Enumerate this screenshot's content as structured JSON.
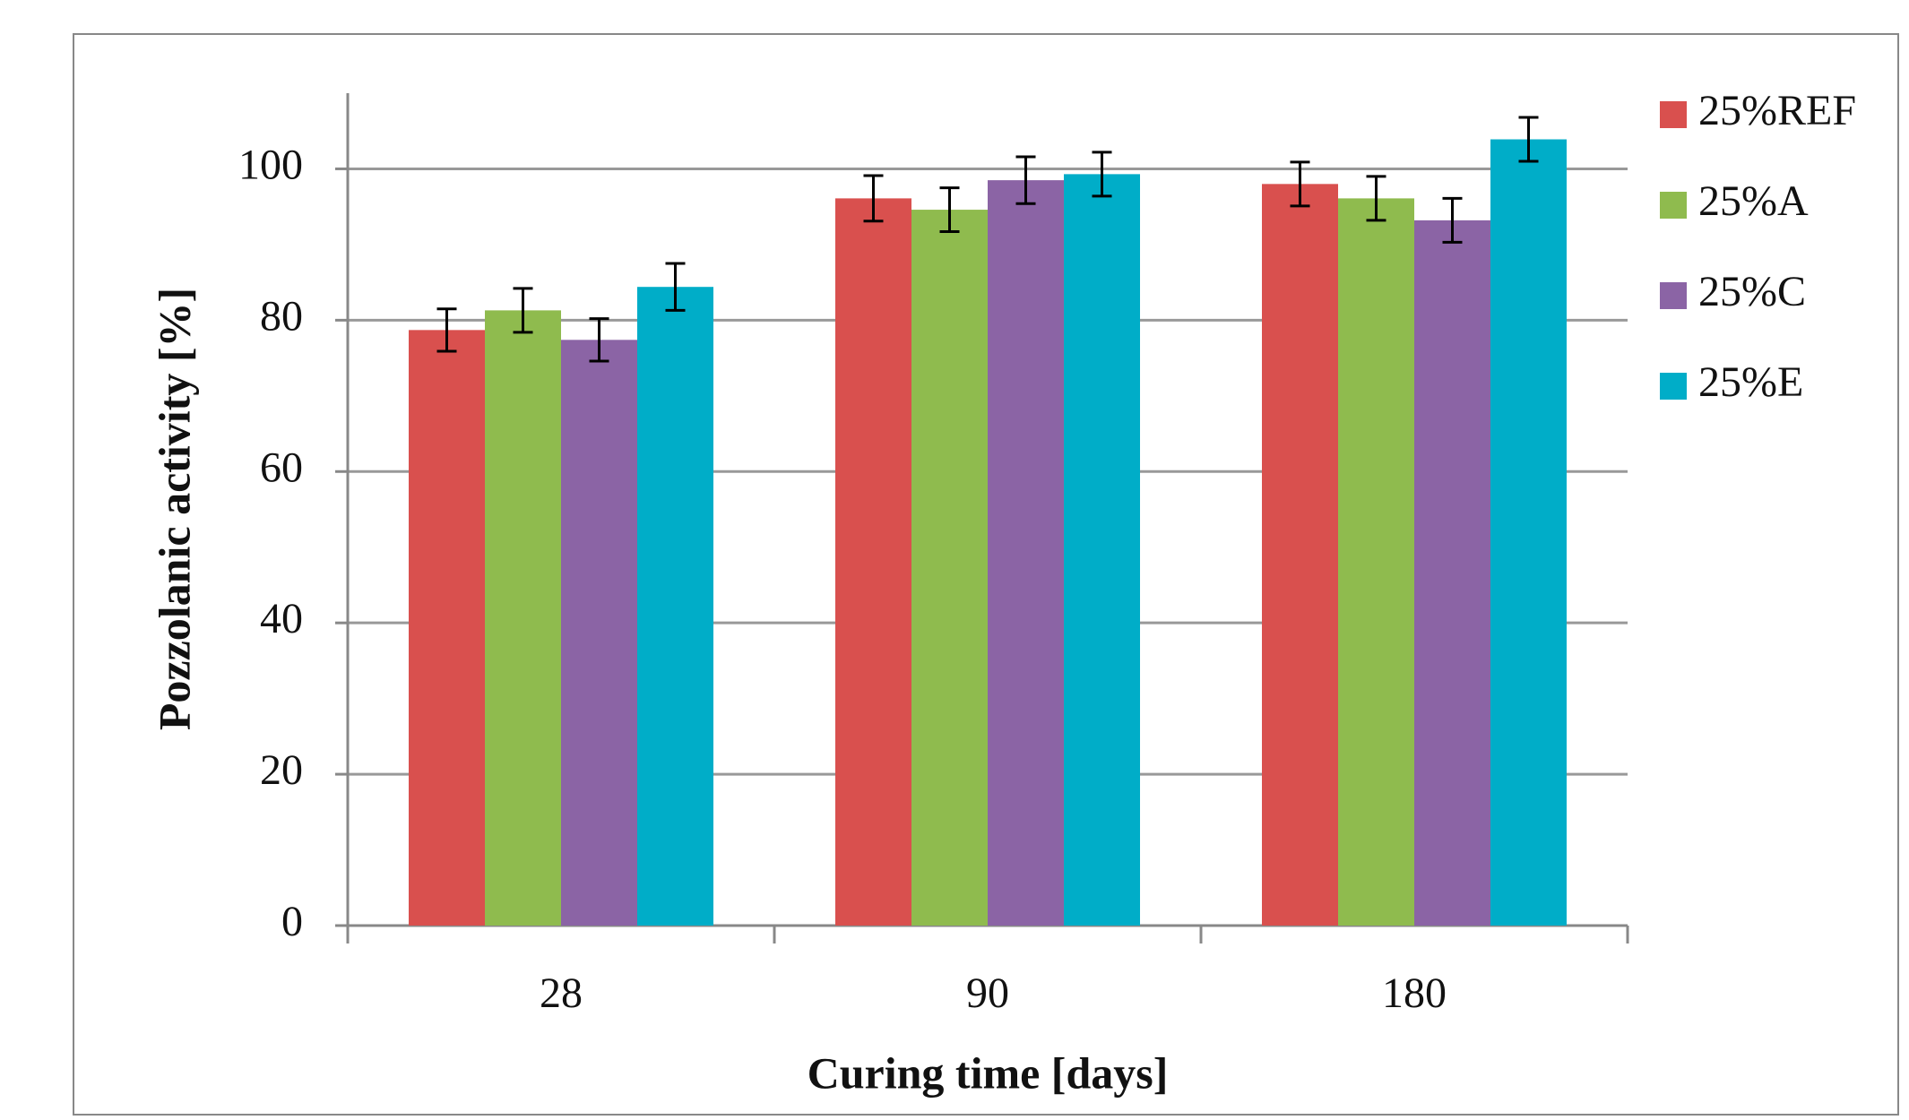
{
  "chart_data": {
    "type": "bar",
    "x_label": "Curing time [days]",
    "y_label": "Pozzolanic activity [%]",
    "categories": [
      "28",
      "90",
      "180"
    ],
    "series": [
      {
        "name": "25%REF",
        "color": "#d9504e",
        "values": [
          78.7,
          96.1,
          98.0
        ],
        "errors": [
          2.8,
          3.0,
          2.9
        ]
      },
      {
        "name": "25%A",
        "color": "#8fbb4e",
        "values": [
          81.3,
          94.6,
          96.1
        ],
        "errors": [
          2.9,
          2.9,
          2.9
        ]
      },
      {
        "name": "25%C",
        "color": "#8b64a5",
        "values": [
          77.4,
          98.5,
          93.2
        ],
        "errors": [
          2.8,
          3.1,
          2.9
        ]
      },
      {
        "name": "25%E",
        "color": "#00adc8",
        "values": [
          84.4,
          99.3,
          103.9
        ],
        "errors": [
          3.1,
          2.9,
          2.9
        ]
      }
    ],
    "ylim": [
      0,
      110
    ],
    "yticks": [
      0,
      20,
      40,
      60,
      80,
      100
    ],
    "grid": true,
    "legend": "right"
  }
}
